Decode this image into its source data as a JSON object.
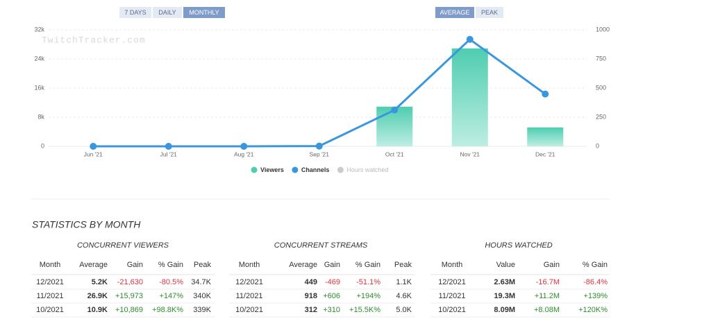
{
  "buttons": {
    "range": [
      {
        "label": "7 DAYS",
        "active": false
      },
      {
        "label": "DAILY",
        "active": false
      },
      {
        "label": "MONTHLY",
        "active": true
      }
    ],
    "mode": [
      {
        "label": "AVERAGE",
        "active": true
      },
      {
        "label": "PEAK",
        "active": false
      }
    ]
  },
  "chart_data": {
    "type": "bar-line",
    "watermark": "TwitchTracker.com",
    "categories": [
      "Jun '21",
      "Jul '21",
      "Aug '21",
      "Sep '21",
      "Oct '21",
      "Nov '21",
      "Dec '21"
    ],
    "series": [
      {
        "name": "Viewers",
        "type": "bar",
        "color": "#4ecdb0",
        "values": [
          0,
          0,
          0,
          30,
          10900,
          26900,
          5200
        ]
      },
      {
        "name": "Channels",
        "type": "line",
        "axis": "y2",
        "color": "#3a97dd",
        "values": [
          0,
          0,
          0,
          2,
          312,
          918,
          449
        ]
      },
      {
        "name": "Hours watched",
        "type": "line",
        "visible": false,
        "color": "#cccccc",
        "values": [
          null,
          null,
          null,
          null,
          null,
          null,
          null
        ]
      }
    ],
    "ylim": [
      0,
      32000
    ],
    "yticks": [
      0,
      {
        "value": 8000,
        "label": "8k"
      },
      {
        "value": 16000,
        "label": "16k"
      },
      {
        "value": 24000,
        "label": "24k"
      },
      {
        "value": 32000,
        "label": "32k"
      }
    ],
    "y2lim": [
      0,
      1000
    ],
    "y2ticks": [
      0,
      250,
      500,
      750,
      1000
    ],
    "grid": true
  },
  "stats": {
    "title": "STATISTICS BY MONTH",
    "tables": [
      {
        "title": "CONCURRENT VIEWERS",
        "columns": [
          "Month",
          "Average",
          "Gain",
          "% Gain",
          "Peak"
        ],
        "rows": [
          [
            "12/2021",
            "5.2K",
            "-21,630",
            "-80.5%",
            "34.7K"
          ],
          [
            "11/2021",
            "26.9K",
            "+15,973",
            "+147%",
            "340K"
          ],
          [
            "10/2021",
            "10.9K",
            "+10,869",
            "+98.8K%",
            "339K"
          ]
        ]
      },
      {
        "title": "CONCURRENT STREAMS",
        "columns": [
          "Month",
          "Average",
          "Gain",
          "% Gain",
          "Peak"
        ],
        "rows": [
          [
            "12/2021",
            "449",
            "-469",
            "-51.1%",
            "1.1K"
          ],
          [
            "11/2021",
            "918",
            "+606",
            "+194%",
            "4.6K"
          ],
          [
            "10/2021",
            "312",
            "+310",
            "+15.5K%",
            "5.0K"
          ]
        ]
      },
      {
        "title": "HOURS WATCHED",
        "columns": [
          "Month",
          "Value",
          "Gain",
          "% Gain"
        ],
        "rows": [
          [
            "12/2021",
            "2.63M",
            "-16.7M",
            "-86.4%"
          ],
          [
            "11/2021",
            "19.3M",
            "+11.2M",
            "+139%"
          ],
          [
            "10/2021",
            "8.09M",
            "+8.08M",
            "+120K%"
          ]
        ]
      }
    ]
  }
}
